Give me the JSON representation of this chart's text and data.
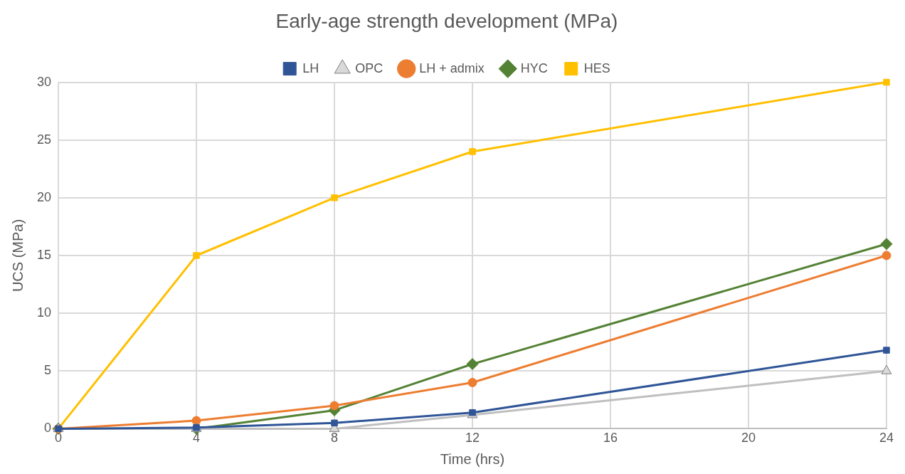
{
  "chart_data": {
    "type": "line",
    "title": "Early-age strength development (MPa)",
    "xlabel": "Time (hrs)",
    "ylabel": "UCS (MPa)",
    "x": [
      0,
      4,
      8,
      12,
      24
    ],
    "xlim": [
      0,
      24
    ],
    "xticks": [
      0,
      4,
      8,
      12,
      16,
      20,
      24
    ],
    "ylim": [
      0,
      30
    ],
    "yticks": [
      0,
      5,
      10,
      15,
      20,
      25,
      30
    ],
    "grid": true,
    "legend": "top",
    "series": [
      {
        "name": "LH",
        "color": "#2f5597",
        "marker": "square",
        "values": [
          0,
          0.1,
          0.5,
          1.4,
          6.8
        ]
      },
      {
        "name": "OPC",
        "color": "#bfbfbf",
        "marker": "triangle",
        "values": [
          0,
          0,
          0,
          1.2,
          5
        ]
      },
      {
        "name": "LH + admix",
        "color": "#ed7d31",
        "marker": "circle",
        "values": [
          0,
          0.7,
          2,
          4,
          15
        ]
      },
      {
        "name": "HYC",
        "color": "#548235",
        "marker": "diamond",
        "values": [
          0,
          0,
          1.6,
          5.6,
          16
        ]
      },
      {
        "name": "HES",
        "color": "#ffc000",
        "marker": "square",
        "values": [
          0,
          15,
          20,
          24,
          30
        ]
      }
    ]
  }
}
